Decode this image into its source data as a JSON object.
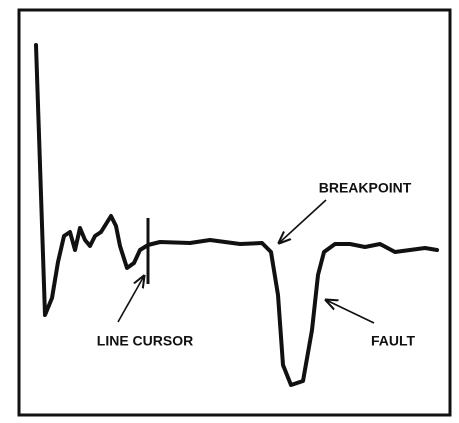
{
  "labels": {
    "breakpoint": "BREAKPOINT",
    "line_cursor": "LINE CURSOR",
    "fault": "FAULT"
  }
}
